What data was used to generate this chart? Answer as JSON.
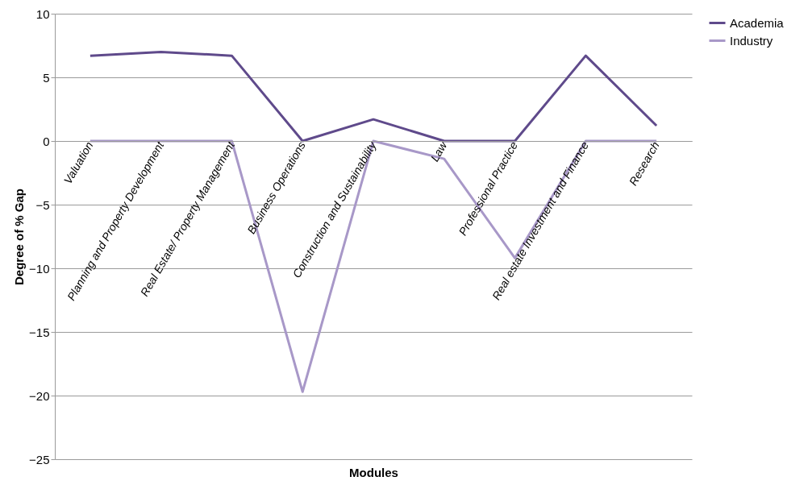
{
  "chart_data": {
    "type": "line",
    "categories": [
      "Valuation",
      "Planning and Property Development",
      "Real Estate/ Property Management",
      "Business Operations",
      "Construction and Sustainability",
      "Law",
      "Professional Practice",
      "Real estate Investment and Finance",
      "Research"
    ],
    "series": [
      {
        "name": "Academia",
        "color": "#5f4a8b",
        "values": [
          6.7,
          7.0,
          6.7,
          0,
          1.7,
          0,
          0,
          6.7,
          1.2
        ]
      },
      {
        "name": "Industry",
        "color": "#a898c8",
        "values": [
          0,
          0,
          0,
          -19.7,
          0,
          -1.4,
          -9.2,
          0,
          0
        ]
      }
    ],
    "xlabel": "Modules",
    "ylabel": "Degree of % Gap",
    "ylim": [
      -25,
      10
    ],
    "yticks": [
      -25,
      -20,
      -15,
      -10,
      -5,
      0,
      5,
      10
    ],
    "grid": "y",
    "legend": "right",
    "marker": "none",
    "line_style": "solid"
  }
}
